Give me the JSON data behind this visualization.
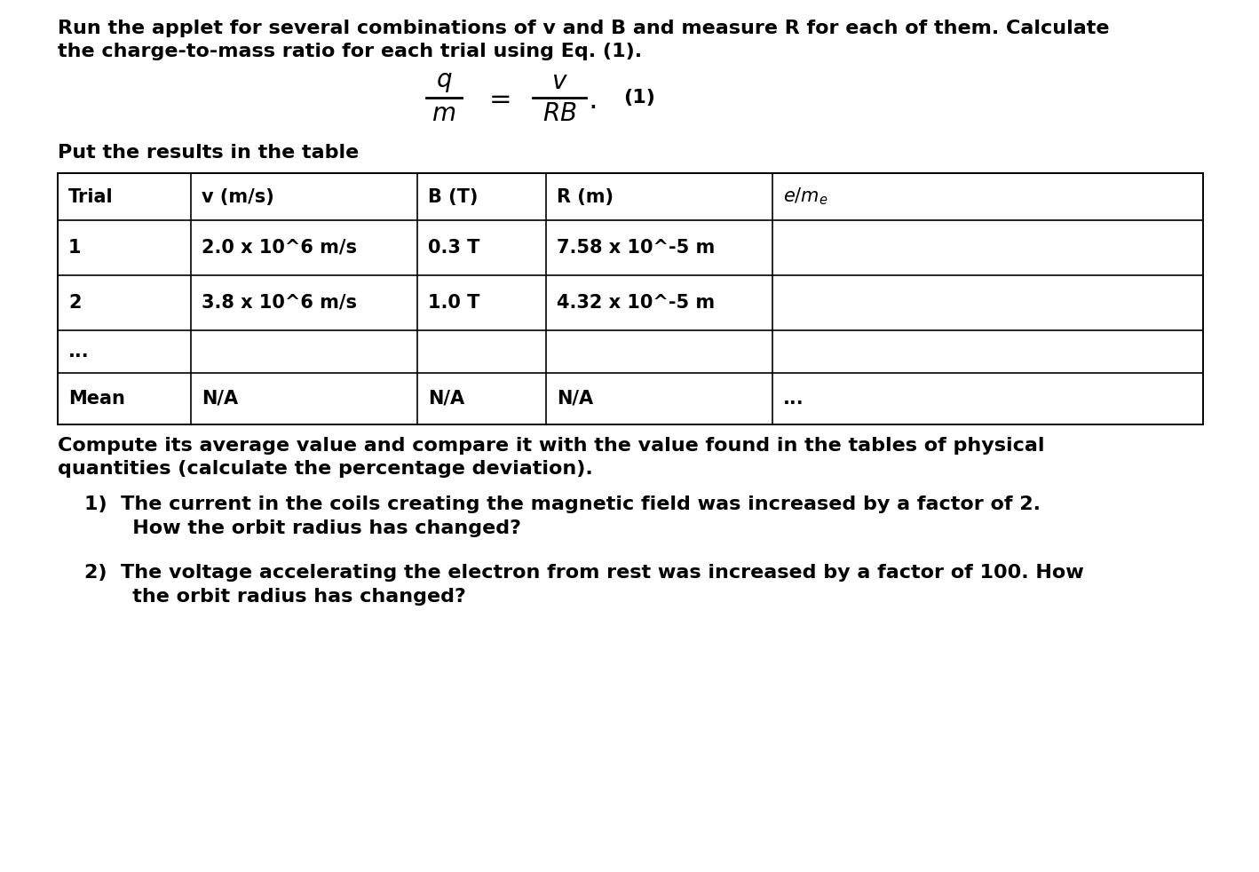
{
  "background_color": "#ffffff",
  "para1_line1": "Run the applet for several combinations of v and B and measure R for each of them. Calculate",
  "para1_line2": "the charge-to-mass ratio for each trial using Eq. (1).",
  "put_results_text": "Put the results in the table",
  "compute_text_line1": "Compute its average value and compare it with the value found in the tables of physical",
  "compute_text_line2": "quantities (calculate the percentage deviation).",
  "q1_line1": "1)  The current in the coils creating the magnetic field was increased by a factor of 2.",
  "q1_line2": "       How the orbit radius has changed?",
  "q2_line1": "2)  The voltage accelerating the electron from rest was increased by a factor of 100. How",
  "q2_line2": "       the orbit radius has changed?",
  "table_col_lefts": [
    65,
    215,
    470,
    615,
    870,
    1355
  ],
  "table_row_tops": [
    195,
    248,
    310,
    372,
    420,
    478
  ],
  "font_size_body": 16,
  "font_size_table": 15,
  "font_size_eq": 20
}
